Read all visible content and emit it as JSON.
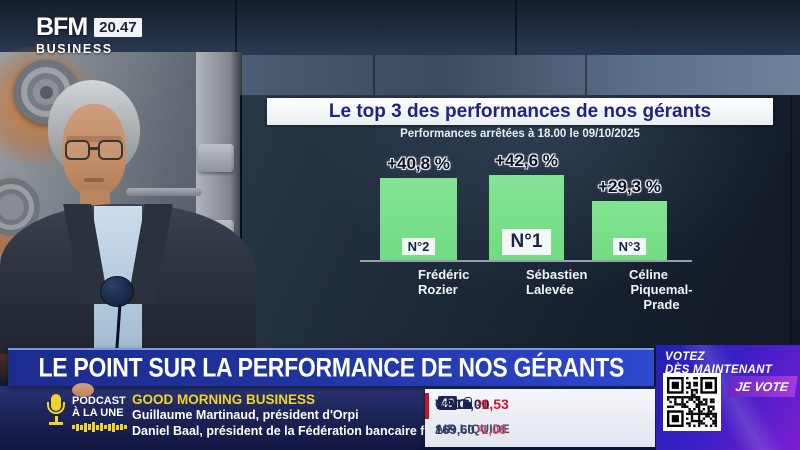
{
  "channel": {
    "name": "BFM",
    "sub": "BUSINESS",
    "time": "20.47"
  },
  "chart": {
    "title": "Le top 3 des performances de nos gérants",
    "subtitle": "Performances arrêtées à 18.00 le 09/10/2025",
    "bars": [
      {
        "value_label": "+40,8 %",
        "rank": "N°2",
        "name_line1": "Frédéric",
        "name_line2": "Rozier"
      },
      {
        "value_label": "+42,6 %",
        "rank": "N°1",
        "name_line1": "Sébastien",
        "name_line2": "Lalevée"
      },
      {
        "value_label": "+29,3 %",
        "rank": "N°3",
        "name_line1": "Céline",
        "name_line2": "Piquemal-Prade"
      }
    ]
  },
  "chart_data": {
    "type": "bar",
    "title": "Le top 3 des performances de nos gérants",
    "subtitle": "Performances arrêtées à 18.00 le 09/10/2025",
    "categories": [
      "Frédéric Rozier",
      "Sébastien Lalevée",
      "Céline Piquemal-Prade"
    ],
    "values": [
      40.8,
      42.6,
      29.3
    ],
    "value_labels": [
      "+40,8 %",
      "+42,6 %",
      "+29,3 %"
    ],
    "ranks": [
      "N°2",
      "N°1",
      "N°3"
    ],
    "unit": "%",
    "ylim": [
      0,
      50
    ],
    "bar_color": "#76de88",
    "grid": false,
    "legend": false
  },
  "banner": {
    "headline": "LE POINT SUR LA PERFORMANCE DE NOS GÉRANTS"
  },
  "podcast": {
    "kicker_line1": "PODCAST",
    "kicker_line2": "À LA UNE",
    "show": "GOOD MORNING BUSINESS",
    "guest1": "Guillaume Martinaud, président d'Orpi",
    "guest2": "Daniel Baal, président de la Fédération bancaire française"
  },
  "ticker": {
    "rows": [
      {
        "name": "CAC",
        "badge": "40",
        "value": "7 918,00",
        "unit": "pts",
        "change": "-1,53",
        "change_unit": "%"
      },
      {
        "name": "AIR LIQUIDE",
        "badge": "",
        "value": "169,60",
        "unit": "€",
        "change": "-1,08",
        "change_unit": "%"
      }
    ]
  },
  "vote": {
    "cta_line1": "VOTEZ",
    "cta_line2": "DÈS MAINTENANT",
    "button": "JE VOTE"
  },
  "colors": {
    "bar_green": "#76de88",
    "banner_blue": "#2e49d0",
    "accent_yellow": "#f2d32a",
    "negative_red": "#ce1430",
    "navy": "#1b2550",
    "vote_purple": "#7a1ed0"
  }
}
